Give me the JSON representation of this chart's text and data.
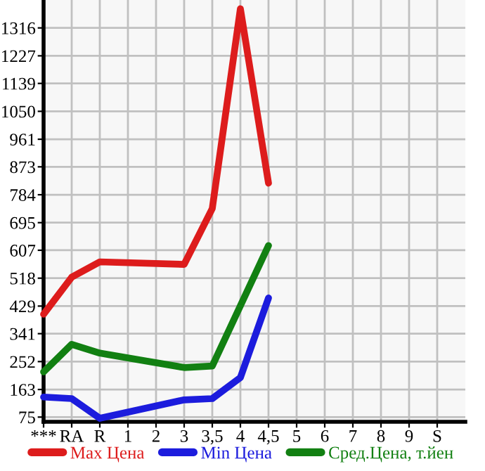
{
  "chart_data": {
    "type": "line",
    "categories": [
      "***",
      "RA",
      "R",
      "1",
      "2",
      "3",
      "3,5",
      "4",
      "4,5",
      "5",
      "6",
      "7",
      "8",
      "9",
      "S"
    ],
    "series": [
      {
        "name": "Max Цена",
        "color": "#dd1c1c",
        "values": [
          403,
          521,
          570,
          null,
          null,
          562,
          740,
          1377,
          821,
          null,
          null,
          null,
          null,
          null,
          null
        ]
      },
      {
        "name": "Min Цена",
        "color": "#1c1cdd",
        "values": [
          139,
          134,
          71,
          null,
          null,
          130,
          134,
          201,
          455,
          null,
          null,
          null,
          null,
          null,
          null
        ]
      },
      {
        "name": "Сред.Цена, т.йен",
        "color": "#128012",
        "values": [
          219,
          307,
          279,
          null,
          null,
          233,
          238,
          null,
          622,
          null,
          null,
          null,
          null,
          null,
          null
        ]
      }
    ],
    "ylim": [
      60,
      1405
    ],
    "yticks": [
      75,
      163,
      252,
      341,
      429,
      518,
      607,
      695,
      784,
      873,
      961,
      1050,
      1139,
      1227,
      1316
    ],
    "grid": true,
    "legend": "bottom",
    "line_style": "solid",
    "marker": "none"
  }
}
